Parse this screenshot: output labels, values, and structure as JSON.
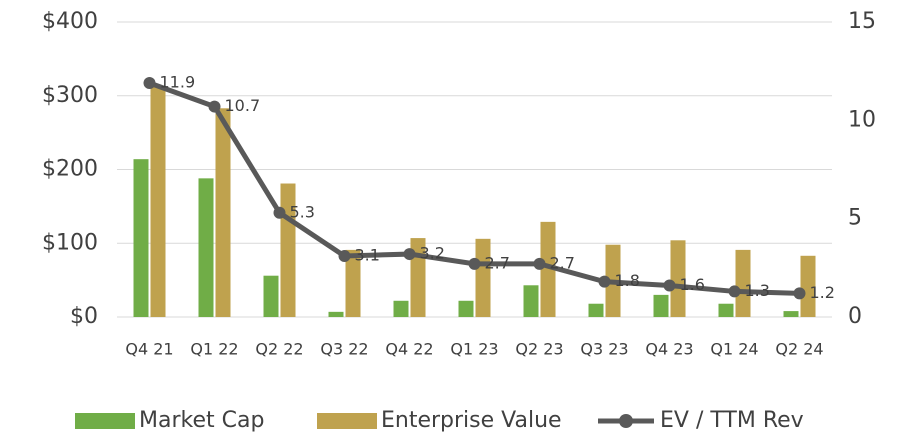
{
  "chart_data": {
    "type": "bar",
    "categories": [
      "Q4 21",
      "Q1 22",
      "Q2 22",
      "Q3 22",
      "Q4 22",
      "Q1 23",
      "Q2 23",
      "Q3 23",
      "Q4 23",
      "Q1 24",
      "Q2 24"
    ],
    "series": [
      {
        "name": "Market Cap",
        "color": "#70ad47",
        "values": [
          214,
          188,
          56,
          7,
          22,
          22,
          43,
          18,
          30,
          18,
          8
        ]
      },
      {
        "name": "Enterprise Value",
        "color": "#bfa24e",
        "values": [
          312,
          283,
          181,
          91,
          107,
          106,
          129,
          98,
          104,
          91,
          83
        ]
      },
      {
        "name": "EV / TTM Rev",
        "color": "#595959",
        "type": "line",
        "axis": "y2",
        "values": [
          11.9,
          10.7,
          5.3,
          3.1,
          3.2,
          2.7,
          2.7,
          1.8,
          1.6,
          1.3,
          1.2
        ]
      }
    ],
    "ylim": [
      0,
      400
    ],
    "yticks": [
      {
        "value": 0,
        "label": "$0"
      },
      {
        "value": 100,
        "label": "$100"
      },
      {
        "value": 200,
        "label": "$200"
      },
      {
        "value": 300,
        "label": "$300"
      },
      {
        "value": 400,
        "label": "$400"
      }
    ],
    "y2lim": [
      0,
      15
    ],
    "y2ticks": [
      0,
      5,
      10,
      15
    ],
    "grid": true,
    "legend": "bottom"
  }
}
